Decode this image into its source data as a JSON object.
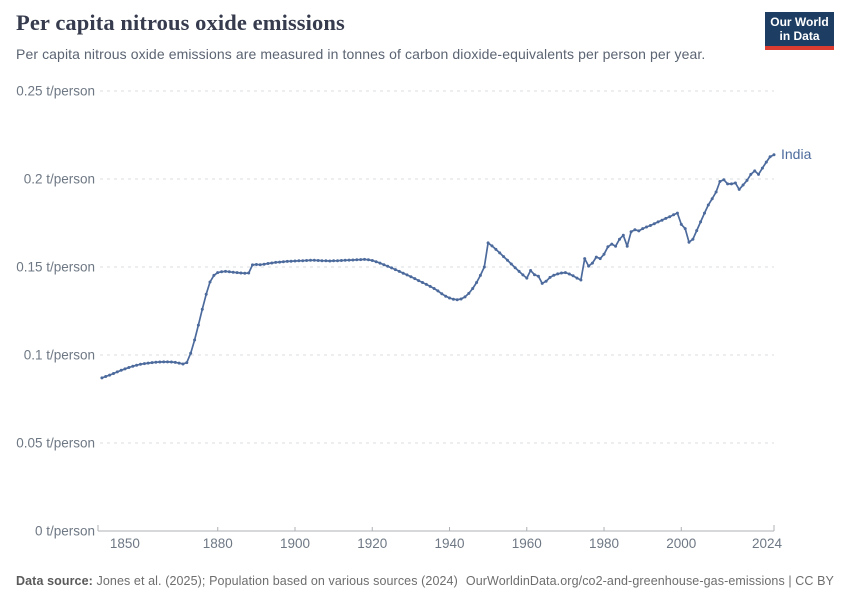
{
  "header": {
    "logo": {
      "line1": "Our World",
      "line2": "in Data"
    }
  },
  "footer": {
    "source_label": "Data source:",
    "source_text": " Jones et al. (2025); Population based on various sources (2024)",
    "link_text": "OurWorldinData.org/co2-and-greenhouse-gas-emissions | CC BY"
  },
  "chart_data": {
    "type": "line",
    "title": "Per capita nitrous oxide emissions",
    "subtitle": "Per capita nitrous oxide emissions are measured in tonnes of carbon dioxide-equivalents per person per year.",
    "unit": "t/person",
    "xlabel": "",
    "ylabel": "t/person",
    "xlim": [
      1849,
      2024
    ],
    "ylim": [
      0,
      0.25
    ],
    "grid": "horizontal-dashed",
    "legend_position": "end-of-line",
    "x_ticks": [
      1850,
      1880,
      1900,
      1920,
      1940,
      1960,
      1980,
      2000,
      2024
    ],
    "y_ticks": [
      {
        "value": 0,
        "label": "0 t/person"
      },
      {
        "value": 0.05,
        "label": "0.05 t/person"
      },
      {
        "value": 0.1,
        "label": "0.1 t/person"
      },
      {
        "value": 0.15,
        "label": "0.15 t/person"
      },
      {
        "value": 0.2,
        "label": "0.2 t/person"
      },
      {
        "value": 0.25,
        "label": "0.25 t/person"
      }
    ],
    "series": [
      {
        "name": "India",
        "color": "#4c6a9c",
        "points": [
          [
            1850,
            0.087
          ],
          [
            1851,
            0.0878
          ],
          [
            1852,
            0.0886
          ],
          [
            1853,
            0.0895
          ],
          [
            1854,
            0.0904
          ],
          [
            1855,
            0.0913
          ],
          [
            1856,
            0.0921
          ],
          [
            1857,
            0.0929
          ],
          [
            1858,
            0.0936
          ],
          [
            1859,
            0.0942
          ],
          [
            1860,
            0.0947
          ],
          [
            1861,
            0.0951
          ],
          [
            1862,
            0.0954
          ],
          [
            1863,
            0.0957
          ],
          [
            1864,
            0.0959
          ],
          [
            1865,
            0.096
          ],
          [
            1866,
            0.0961
          ],
          [
            1867,
            0.0961
          ],
          [
            1868,
            0.096
          ],
          [
            1869,
            0.0958
          ],
          [
            1870,
            0.0954
          ],
          [
            1871,
            0.0949
          ],
          [
            1872,
            0.0957
          ],
          [
            1873,
            0.101
          ],
          [
            1874,
            0.1085
          ],
          [
            1875,
            0.117
          ],
          [
            1876,
            0.126
          ],
          [
            1877,
            0.1345
          ],
          [
            1878,
            0.1415
          ],
          [
            1879,
            0.1452
          ],
          [
            1880,
            0.1468
          ],
          [
            1881,
            0.1473
          ],
          [
            1882,
            0.1475
          ],
          [
            1883,
            0.1473
          ],
          [
            1884,
            0.147
          ],
          [
            1885,
            0.1468
          ],
          [
            1886,
            0.1466
          ],
          [
            1887,
            0.1464
          ],
          [
            1888,
            0.1466
          ],
          [
            1889,
            0.1512
          ],
          [
            1890,
            0.1514
          ],
          [
            1891,
            0.1513
          ],
          [
            1892,
            0.1516
          ],
          [
            1893,
            0.152
          ],
          [
            1894,
            0.1523
          ],
          [
            1895,
            0.1526
          ],
          [
            1896,
            0.1528
          ],
          [
            1897,
            0.153
          ],
          [
            1898,
            0.1532
          ],
          [
            1899,
            0.1533
          ],
          [
            1900,
            0.1534
          ],
          [
            1901,
            0.1535
          ],
          [
            1902,
            0.1536
          ],
          [
            1903,
            0.1537
          ],
          [
            1904,
            0.1538
          ],
          [
            1905,
            0.1538
          ],
          [
            1906,
            0.1537
          ],
          [
            1907,
            0.1536
          ],
          [
            1908,
            0.1535
          ],
          [
            1909,
            0.1534
          ],
          [
            1910,
            0.1535
          ],
          [
            1911,
            0.1536
          ],
          [
            1912,
            0.1537
          ],
          [
            1913,
            0.1538
          ],
          [
            1914,
            0.1539
          ],
          [
            1915,
            0.154
          ],
          [
            1916,
            0.1541
          ],
          [
            1917,
            0.1542
          ],
          [
            1918,
            0.1543
          ],
          [
            1919,
            0.1541
          ],
          [
            1920,
            0.1537
          ],
          [
            1921,
            0.153
          ],
          [
            1922,
            0.1522
          ],
          [
            1923,
            0.1513
          ],
          [
            1924,
            0.1504
          ],
          [
            1925,
            0.1495
          ],
          [
            1926,
            0.1485
          ],
          [
            1927,
            0.1475
          ],
          [
            1928,
            0.1465
          ],
          [
            1929,
            0.1455
          ],
          [
            1930,
            0.1445
          ],
          [
            1931,
            0.1434
          ],
          [
            1932,
            0.1423
          ],
          [
            1933,
            0.1412
          ],
          [
            1934,
            0.1401
          ],
          [
            1935,
            0.139
          ],
          [
            1936,
            0.1378
          ],
          [
            1937,
            0.1364
          ],
          [
            1938,
            0.1348
          ],
          [
            1939,
            0.1334
          ],
          [
            1940,
            0.1324
          ],
          [
            1941,
            0.1317
          ],
          [
            1942,
            0.1314
          ],
          [
            1943,
            0.1318
          ],
          [
            1944,
            0.133
          ],
          [
            1945,
            0.135
          ],
          [
            1946,
            0.1378
          ],
          [
            1947,
            0.1412
          ],
          [
            1948,
            0.1452
          ],
          [
            1949,
            0.15
          ],
          [
            1950,
            0.1637
          ],
          [
            1951,
            0.162
          ],
          [
            1952,
            0.16
          ],
          [
            1953,
            0.158
          ],
          [
            1954,
            0.1559
          ],
          [
            1955,
            0.1538
          ],
          [
            1956,
            0.1517
          ],
          [
            1957,
            0.1496
          ],
          [
            1958,
            0.1475
          ],
          [
            1959,
            0.1455
          ],
          [
            1960,
            0.1437
          ],
          [
            1961,
            0.148
          ],
          [
            1962,
            0.1456
          ],
          [
            1963,
            0.1448
          ],
          [
            1964,
            0.1407
          ],
          [
            1965,
            0.1419
          ],
          [
            1966,
            0.1441
          ],
          [
            1967,
            0.1453
          ],
          [
            1968,
            0.1461
          ],
          [
            1969,
            0.1466
          ],
          [
            1970,
            0.1468
          ],
          [
            1971,
            0.146
          ],
          [
            1972,
            0.145
          ],
          [
            1973,
            0.1437
          ],
          [
            1974,
            0.1426
          ],
          [
            1975,
            0.1548
          ],
          [
            1976,
            0.1505
          ],
          [
            1977,
            0.1522
          ],
          [
            1978,
            0.1556
          ],
          [
            1979,
            0.1548
          ],
          [
            1980,
            0.1572
          ],
          [
            1981,
            0.1615
          ],
          [
            1982,
            0.163
          ],
          [
            1983,
            0.1618
          ],
          [
            1984,
            0.1658
          ],
          [
            1985,
            0.168
          ],
          [
            1986,
            0.1618
          ],
          [
            1987,
            0.17
          ],
          [
            1988,
            0.1712
          ],
          [
            1989,
            0.1705
          ],
          [
            1990,
            0.1718
          ],
          [
            1991,
            0.1727
          ],
          [
            1992,
            0.1736
          ],
          [
            1993,
            0.1746
          ],
          [
            1994,
            0.1756
          ],
          [
            1995,
            0.1766
          ],
          [
            1996,
            0.1776
          ],
          [
            1997,
            0.1786
          ],
          [
            1998,
            0.1797
          ],
          [
            1999,
            0.1806
          ],
          [
            2000,
            0.1742
          ],
          [
            2001,
            0.1718
          ],
          [
            2002,
            0.1641
          ],
          [
            2003,
            0.1658
          ],
          [
            2004,
            0.1707
          ],
          [
            2005,
            0.1756
          ],
          [
            2006,
            0.1806
          ],
          [
            2007,
            0.1852
          ],
          [
            2008,
            0.1888
          ],
          [
            2009,
            0.1926
          ],
          [
            2010,
            0.1986
          ],
          [
            2011,
            0.1996
          ],
          [
            2012,
            0.1972
          ],
          [
            2013,
            0.1972
          ],
          [
            2014,
            0.1977
          ],
          [
            2015,
            0.1941
          ],
          [
            2016,
            0.1966
          ],
          [
            2017,
            0.1992
          ],
          [
            2018,
            0.2026
          ],
          [
            2019,
            0.2046
          ],
          [
            2020,
            0.2026
          ],
          [
            2021,
            0.2062
          ],
          [
            2022,
            0.2096
          ],
          [
            2023,
            0.2126
          ],
          [
            2024,
            0.2138
          ]
        ]
      }
    ],
    "style": {
      "line_color": "#4c6a9c",
      "grid_color": "#dadde0",
      "axis_color": "#adb1b5",
      "tick_label_color": "#6e7884",
      "title_color": "#363b4d",
      "subtitle_color": "#5b6472",
      "logo_bg": "#1d3d63",
      "logo_stripe": "#dc3b30"
    }
  }
}
